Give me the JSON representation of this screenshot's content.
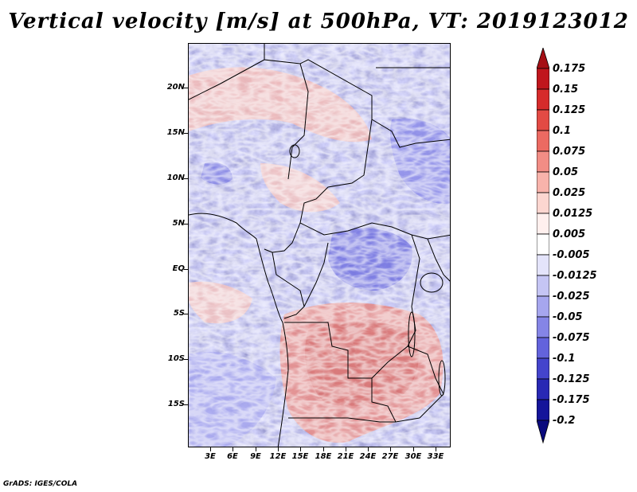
{
  "title": "Vertical velocity [m/s] at 500hPa, VT: 2019123012",
  "map": {
    "lat_labels": [
      "20N",
      "15N",
      "10N",
      "5N",
      "EQ",
      "5S",
      "10S",
      "15S"
    ],
    "lat_values": [
      20,
      15,
      10,
      5,
      0,
      -5,
      -10,
      -15
    ],
    "lon_labels": [
      "3E",
      "6E",
      "9E",
      "12E",
      "15E",
      "18E",
      "21E",
      "24E",
      "27E",
      "30E",
      "33E"
    ],
    "lon_values": [
      3,
      6,
      9,
      12,
      15,
      18,
      21,
      24,
      27,
      30,
      33
    ],
    "lat_range": [
      -19.5,
      24.5
    ],
    "lon_range": [
      0.5,
      35.5
    ]
  },
  "colorbar": {
    "labels": [
      "0.175",
      "0.15",
      "0.125",
      "0.1",
      "0.075",
      "0.05",
      "0.025",
      "0.0125",
      "0.005",
      "-0.005",
      "-0.0125",
      "-0.025",
      "-0.05",
      "-0.075",
      "-0.1",
      "-0.125",
      "-0.175",
      "-0.2"
    ],
    "colors": [
      "#a50f15",
      "#c0161d",
      "#d62b2b",
      "#e34a44",
      "#ec6a62",
      "#f28d85",
      "#f8b3ab",
      "#fcd6d0",
      "#fff0ee",
      "#ffffff",
      "#e4e4fb",
      "#c5c5f4",
      "#a6a6ee",
      "#8585e6",
      "#6363dc",
      "#4444cc",
      "#2828b4",
      "#14149a",
      "#0a0a7d"
    ]
  },
  "footer": "GrADS: IGES/COLA"
}
